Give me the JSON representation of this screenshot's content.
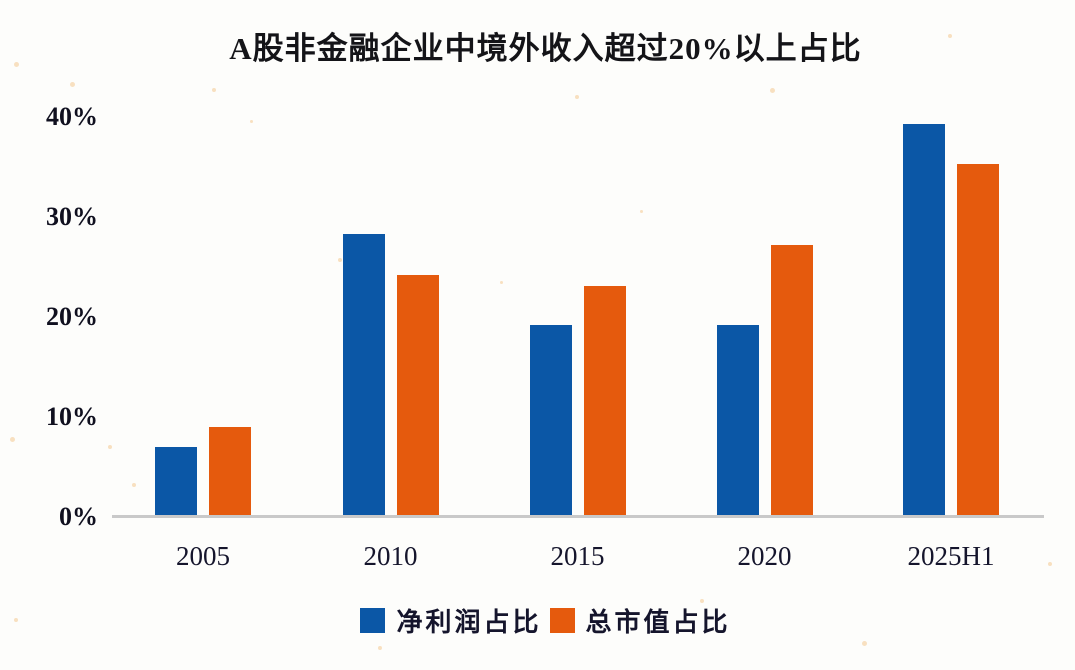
{
  "page": {
    "background": "#FDFDFB"
  },
  "chart_data": {
    "type": "bar",
    "title": "A股非金融企业中境外收入超过20%以上占比",
    "categories": [
      "2005",
      "2010",
      "2015",
      "2020",
      "2025H1"
    ],
    "series": [
      {
        "name": "净利润占比",
        "color": "#0B57A6",
        "values": [
          7.0,
          28.3,
          19.2,
          19.2,
          39.3
        ]
      },
      {
        "name": "总市值占比",
        "color": "#E55A0D",
        "values": [
          9.0,
          24.2,
          23.1,
          27.2,
          35.3
        ]
      }
    ],
    "xlabel": "",
    "ylabel": "",
    "ylim": [
      0,
      40
    ],
    "yticks": [
      0,
      10,
      20,
      30,
      40
    ],
    "ytick_labels": [
      "0%",
      "10%",
      "20%",
      "30%",
      "40%"
    ],
    "grid": false,
    "legend_position": "bottom"
  },
  "colors": {
    "axis_line": "#C9C9C9",
    "text": "#15152C",
    "watermark_dot": "#F3C386"
  }
}
